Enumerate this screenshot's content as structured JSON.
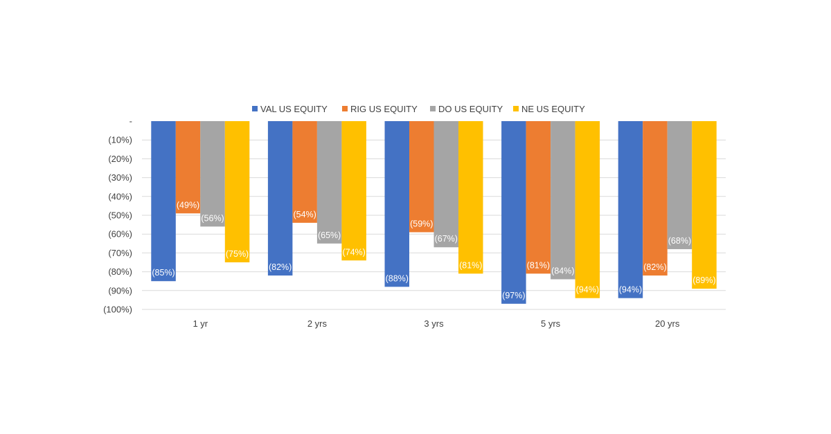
{
  "chart_data": {
    "type": "bar",
    "title": "",
    "xlabel": "",
    "ylabel": "",
    "categories": [
      "1 yr",
      "2 yrs",
      "3 yrs",
      "5 yrs",
      "20 yrs"
    ],
    "ylim": [
      -100,
      0
    ],
    "ytick_values": [
      0,
      -10,
      -20,
      -30,
      -40,
      -50,
      -60,
      -70,
      -80,
      -90,
      -100
    ],
    "ytick_labels": [
      "-",
      "(10%)",
      "(20%)",
      "(30%)",
      "(40%)",
      "(50%)",
      "(60%)",
      "(70%)",
      "(80%)",
      "(90%)",
      "(100%)"
    ],
    "grid": true,
    "legend_position": "top",
    "series": [
      {
        "name": "VAL US EQUITY",
        "color": "#4472C4",
        "values": [
          -85,
          -82,
          -88,
          -97,
          -94
        ],
        "labels": [
          "(85%)",
          "(82%)",
          "(88%)",
          "(97%)",
          "(94%)"
        ]
      },
      {
        "name": "RIG US EQUITY",
        "color": "#ED7D31",
        "values": [
          -49,
          -54,
          -59,
          -81,
          -82
        ],
        "labels": [
          "(49%)",
          "(54%)",
          "(59%)",
          "(81%)",
          "(82%)"
        ]
      },
      {
        "name": "DO US EQUITY",
        "color": "#A5A5A5",
        "values": [
          -56,
          -65,
          -67,
          -84,
          -68
        ],
        "labels": [
          "(56%)",
          "(65%)",
          "(67%)",
          "(84%)",
          "(68%)"
        ]
      },
      {
        "name": "NE US EQUITY",
        "color": "#FFC000",
        "values": [
          -75,
          -74,
          -81,
          -94,
          -89
        ],
        "labels": [
          "(75%)",
          "(74%)",
          "(81%)",
          "(94%)",
          "(89%)"
        ]
      }
    ]
  }
}
